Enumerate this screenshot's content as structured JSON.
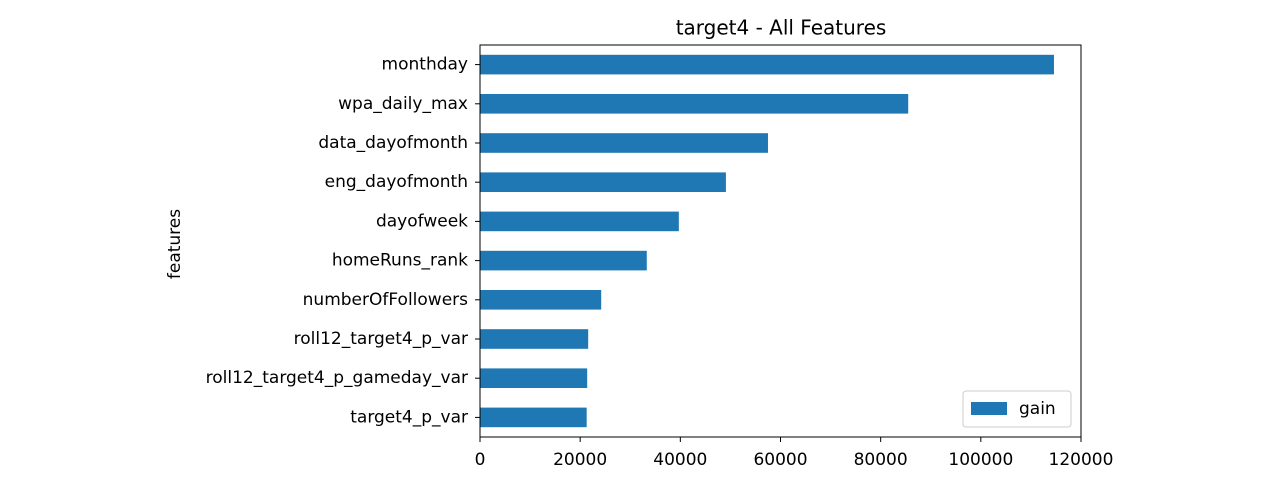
{
  "chart_data": {
    "type": "barh",
    "title": "target4 - All Features",
    "y_label": "features",
    "categories": [
      "monthday",
      "wpa_daily_max",
      "data_dayofmonth",
      "eng_dayofmonth",
      "dayofweek",
      "homeRuns_rank",
      "numberOfFollowers",
      "roll12_target4_p_var",
      "roll12_target4_p_gameday_var",
      "target4_p_var"
    ],
    "series": [
      {
        "name": "gain",
        "color": "#1f77b4",
        "values": [
          114600,
          85500,
          57500,
          49100,
          39700,
          33300,
          24200,
          21600,
          21400,
          21300
        ]
      }
    ],
    "xlim": [
      0,
      120000
    ],
    "xticks": [
      0,
      20000,
      40000,
      60000,
      80000,
      100000,
      120000
    ],
    "legend": "lower right"
  }
}
